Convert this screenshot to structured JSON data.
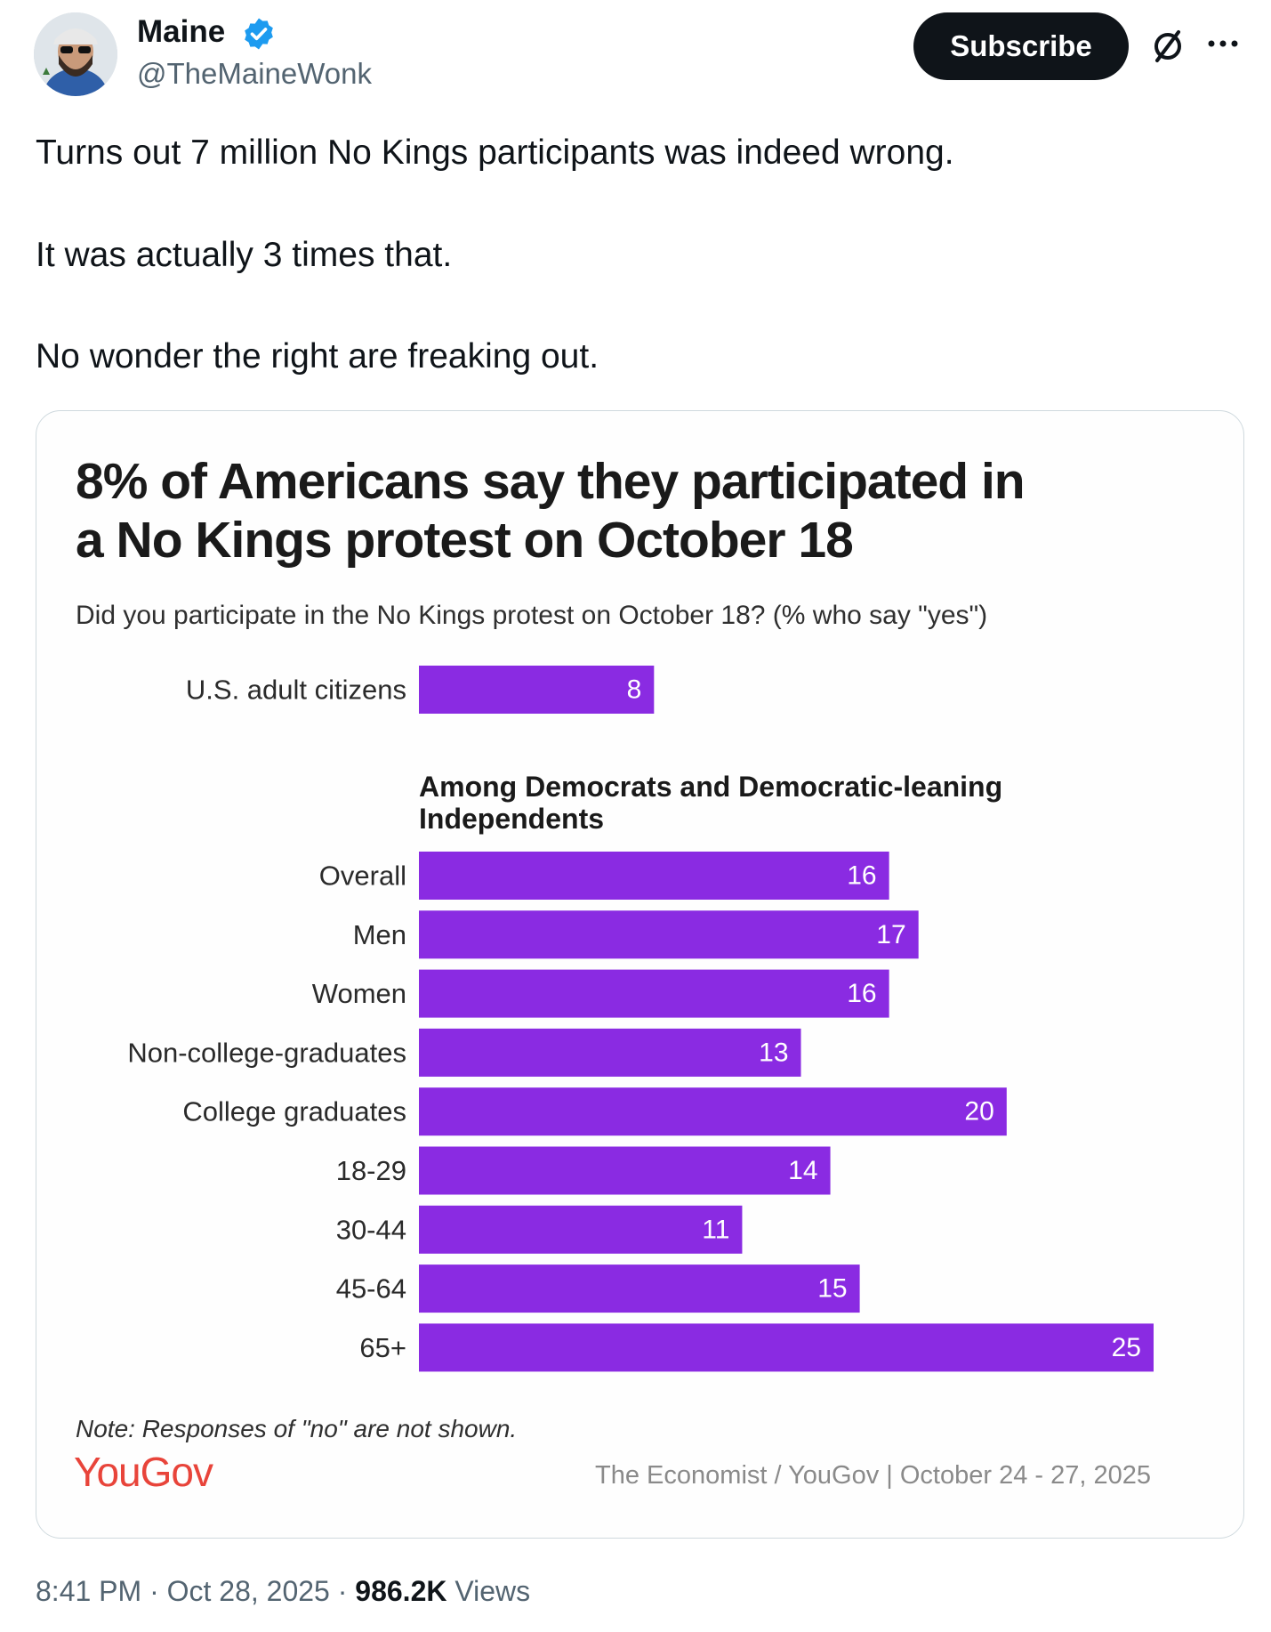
{
  "author": {
    "name": "Maine",
    "handle": "@TheMaineWonk"
  },
  "actions": {
    "subscribe_label": "Subscribe"
  },
  "tweet": {
    "lines": [
      "Turns out 7 million No Kings participants was indeed wrong.",
      "It was actually 3 times that.",
      "No wonder the right are freaking out."
    ]
  },
  "chart_data": {
    "type": "bar",
    "orientation": "horizontal",
    "title_lines": [
      "8% of Americans say they participated in",
      "a No Kings protest on October 18"
    ],
    "subtitle": "Did you participate in the No Kings protest on October 18? (% who say \"yes\")",
    "overall": {
      "category": "U.S. adult citizens",
      "value": 8
    },
    "section_lines": [
      "Among Democrats and Democratic-leaning",
      "Independents"
    ],
    "categories": [
      "Overall",
      "Men",
      "Women",
      "Non-college-graduates",
      "College graduates",
      "18-29",
      "30-44",
      "45-64",
      "65+"
    ],
    "values": [
      16,
      17,
      16,
      13,
      20,
      14,
      11,
      15,
      25
    ],
    "xlim": [
      0,
      25
    ],
    "bar_color": "#8a2be2",
    "note": "Note: Responses of \"no\" are not shown.",
    "logo": "YouGov",
    "source": "The Economist / YouGov | October 24 - 27, 2025"
  },
  "meta": {
    "time": "8:41 PM",
    "date": "Oct 28, 2025",
    "views_count": "986.2K",
    "views_label": "Views",
    "sep": "·"
  },
  "colors": {
    "bar": "#8a2be2",
    "logo": "#e8443a",
    "verified": "#1d9bf0"
  }
}
